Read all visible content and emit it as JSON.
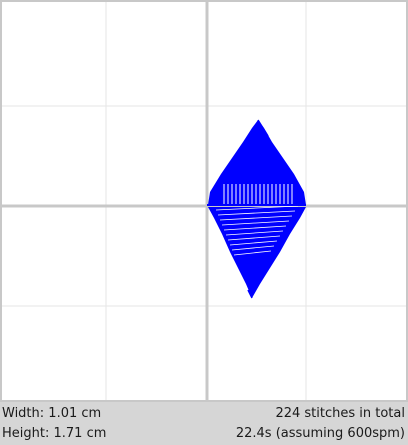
{
  "footer": {
    "width_label": "Width:",
    "width_value": "1.01 cm",
    "height_label": "Height:",
    "height_value": "1.71 cm",
    "stitch_count": "224",
    "stitch_suffix": "stitches in total",
    "time_text": "22.4s (assuming 600spm)"
  },
  "preview": {
    "stitch_color": "#0000ff",
    "grid_color": "#e6e6e6",
    "axis_color": "#c8c8c8",
    "background": "#ffffff"
  }
}
